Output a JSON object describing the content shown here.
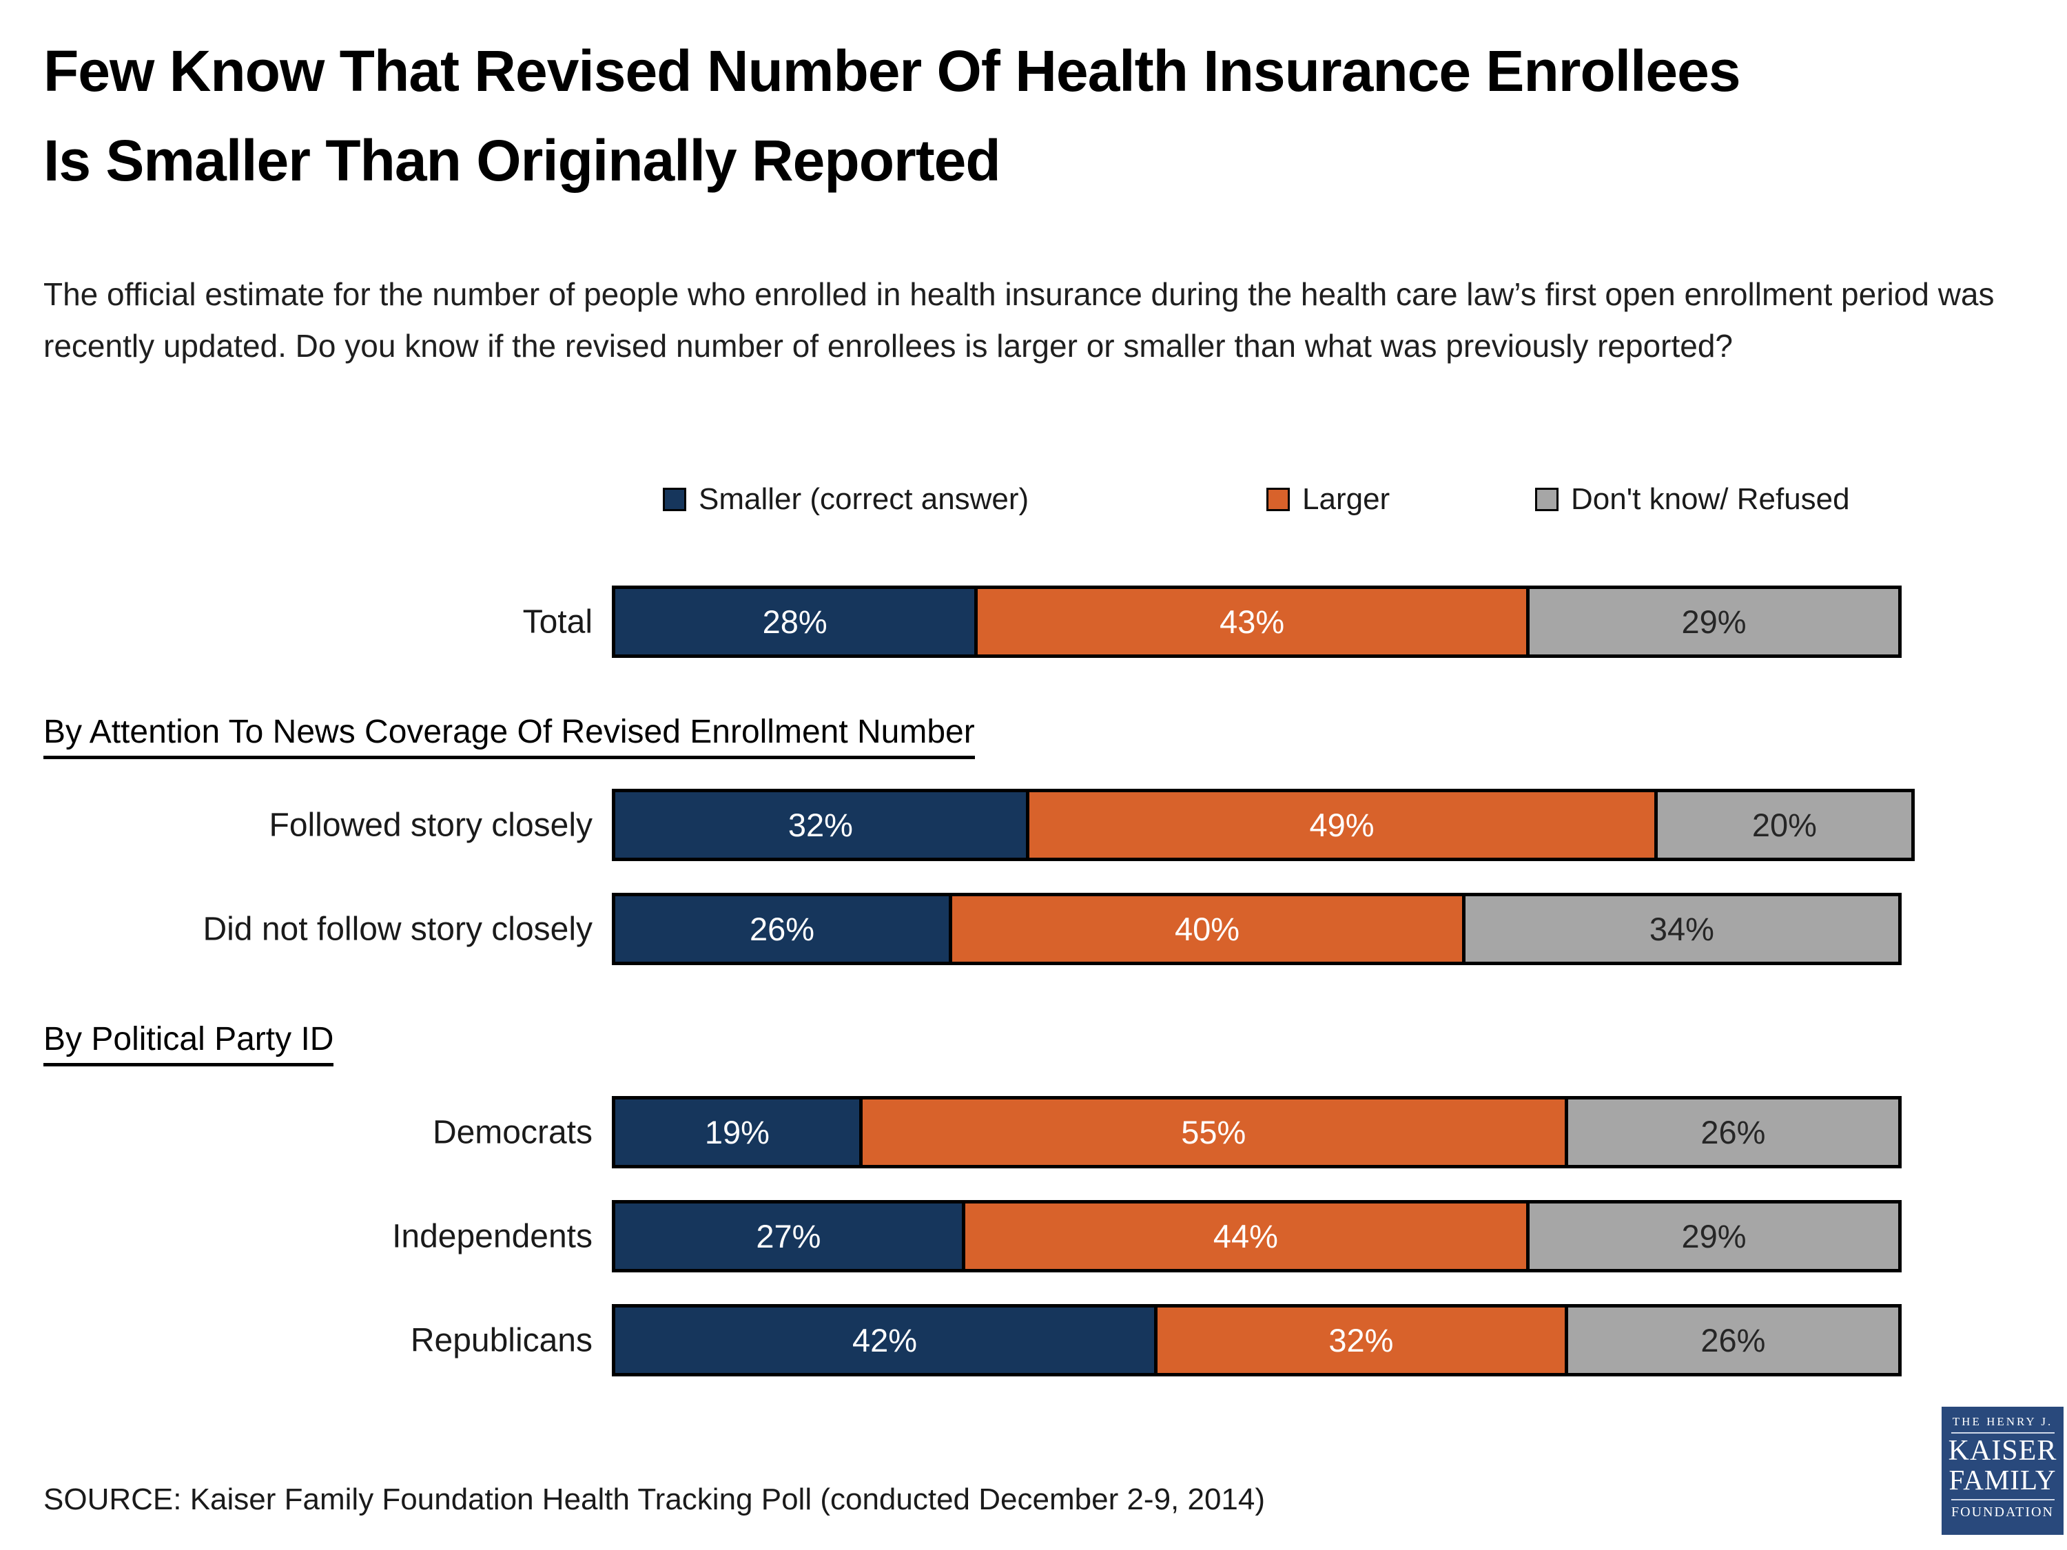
{
  "title": {
    "line1": "Few Know That Revised Number Of Health Insurance Enrollees",
    "line2": "Is Smaller Than Originally Reported"
  },
  "question": "The official estimate for the number of people who enrolled in health insurance during the health care law’s first open enrollment period was recently updated.  Do you know if the revised number of enrollees is larger or smaller than what was previously reported?",
  "legend": [
    {
      "label": "Smaller (correct answer)",
      "color": "#16365C"
    },
    {
      "label": "Larger",
      "color": "#D8622B"
    },
    {
      "label": "Don't know/ Refused",
      "color": "#A6A6A6"
    }
  ],
  "chart_data": {
    "type": "bar",
    "stacked": true,
    "orientation": "horizontal",
    "value_suffix": "%",
    "axis_max": 100,
    "grid": false,
    "legend_position": "top",
    "series_names": [
      "Smaller (correct answer)",
      "Larger",
      "Don't know/ Refused"
    ],
    "series_colors": [
      "#16365C",
      "#D8622B",
      "#A6A6A6"
    ],
    "series_text_colors": [
      "#FFFFFF",
      "#FFFFFF",
      "#262626"
    ],
    "groups": [
      {
        "heading": null,
        "rows": [
          {
            "label": "Total",
            "values": [
              28,
              43,
              29
            ]
          }
        ]
      },
      {
        "heading": "By Attention To News Coverage Of Revised Enrollment Number",
        "rows": [
          {
            "label": "Followed story closely",
            "values": [
              32,
              49,
              20
            ]
          },
          {
            "label": "Did not follow story closely",
            "values": [
              26,
              40,
              34
            ]
          }
        ]
      },
      {
        "heading": "By Political Party ID",
        "rows": [
          {
            "label": "Democrats",
            "values": [
              19,
              55,
              26
            ]
          },
          {
            "label": "Independents",
            "values": [
              27,
              44,
              29
            ]
          },
          {
            "label": "Republicans",
            "values": [
              42,
              32,
              26
            ]
          }
        ]
      }
    ]
  },
  "source": "SOURCE: Kaiser Family Foundation Health Tracking Poll (conducted December 2-9, 2014)",
  "logo": {
    "line1": "THE HENRY J.",
    "line2": "KAISER",
    "line3": "FAMILY",
    "line4": "FOUNDATION",
    "bg": "#29497C"
  }
}
